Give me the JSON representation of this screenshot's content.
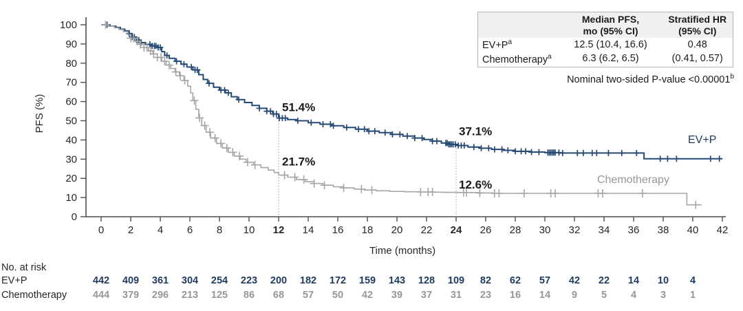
{
  "colors": {
    "evp_line": "#254a73",
    "evp_text": "#1f3a5f",
    "chemo_line": "#a6a6a6",
    "chemo_text": "#979797",
    "axis": "#4d4d4d",
    "tick_text": "#262626",
    "annotation_text": "#1a1a1a",
    "refline": "#999999",
    "table_header_bg": "#f0f0f0",
    "table_border": "#b3b3b3"
  },
  "chart_data": {
    "type": "line",
    "subtype": "kaplan-meier-step",
    "title": "",
    "xlabel": "Time (months)",
    "ylabel": "PFS (%)",
    "xlim": [
      0,
      42
    ],
    "ylim": [
      0,
      100
    ],
    "xticks": [
      0,
      2,
      4,
      6,
      8,
      10,
      12,
      14,
      16,
      18,
      20,
      22,
      24,
      26,
      28,
      30,
      32,
      34,
      36,
      38,
      40,
      42
    ],
    "bold_xticks": [
      12,
      24
    ],
    "yticks": [
      0,
      10,
      20,
      30,
      40,
      50,
      60,
      70,
      80,
      90,
      100
    ],
    "grid": false,
    "reference_lines_x": [
      12,
      24
    ],
    "series": [
      {
        "name": "EV+P",
        "end": 42,
        "steps": [
          [
            0,
            100
          ],
          [
            0.6,
            99.3
          ],
          [
            1.0,
            98.6
          ],
          [
            1.3,
            97.7
          ],
          [
            1.6,
            96.8
          ],
          [
            1.9,
            95.4
          ],
          [
            2.1,
            93.6
          ],
          [
            2.4,
            92.0
          ],
          [
            2.7,
            90.7
          ],
          [
            3.0,
            89.8
          ],
          [
            3.4,
            89.0
          ],
          [
            3.8,
            88.2
          ],
          [
            4.1,
            86.0
          ],
          [
            4.3,
            84.0
          ],
          [
            4.6,
            82.5
          ],
          [
            5.0,
            81.0
          ],
          [
            5.4,
            79.5
          ],
          [
            5.8,
            78.0
          ],
          [
            6.2,
            76.5
          ],
          [
            6.6,
            74.0
          ],
          [
            6.9,
            71.5
          ],
          [
            7.2,
            69.5
          ],
          [
            7.6,
            67.5
          ],
          [
            8.0,
            66.0
          ],
          [
            8.4,
            64.5
          ],
          [
            8.8,
            62.5
          ],
          [
            9.2,
            61.0
          ],
          [
            9.7,
            59.5
          ],
          [
            10.2,
            58.0
          ],
          [
            10.7,
            56.5
          ],
          [
            11.2,
            55.0
          ],
          [
            11.6,
            53.5
          ],
          [
            12.0,
            51.4
          ],
          [
            12.6,
            50.6
          ],
          [
            13.2,
            50.0
          ],
          [
            14.0,
            49.0
          ],
          [
            14.8,
            48.2
          ],
          [
            15.6,
            47.4
          ],
          [
            16.4,
            46.5
          ],
          [
            17.2,
            45.6
          ],
          [
            18.0,
            44.6
          ],
          [
            18.8,
            43.8
          ],
          [
            19.6,
            42.9
          ],
          [
            20.4,
            42.0
          ],
          [
            21.2,
            41.0
          ],
          [
            21.8,
            40.2
          ],
          [
            22.4,
            39.4
          ],
          [
            23.0,
            38.4
          ],
          [
            23.5,
            37.7
          ],
          [
            24.0,
            37.1
          ],
          [
            24.8,
            36.3
          ],
          [
            25.6,
            35.7
          ],
          [
            26.4,
            35.1
          ],
          [
            27.2,
            34.6
          ],
          [
            28.0,
            34.1
          ],
          [
            29.0,
            33.7
          ],
          [
            30.0,
            33.4
          ],
          [
            31.0,
            33.2
          ],
          [
            36.4,
            33.2
          ],
          [
            36.7,
            30.2
          ]
        ],
        "censor_marks": [
          0.4,
          1.9,
          2.1,
          2.25,
          2.4,
          2.55,
          2.7,
          3.3,
          3.45,
          3.6,
          3.7,
          3.85,
          4.0,
          4.45,
          5.1,
          5.6,
          6.1,
          6.35,
          6.5,
          7.3,
          8.1,
          8.35,
          8.6,
          9.3,
          10.7,
          11.2,
          11.45,
          11.65,
          11.85,
          12.05,
          12.25,
          12.45,
          13.3,
          14.2,
          15.0,
          15.5,
          15.7,
          16.6,
          17.4,
          17.8,
          18.1,
          18.5,
          19.2,
          19.7,
          20.2,
          20.7,
          21.2,
          21.7,
          22.4,
          22.7,
          23.3,
          23.4,
          23.5,
          23.6,
          23.7,
          23.8,
          23.95,
          24.15,
          24.35,
          24.55,
          25.2,
          25.7,
          26.2,
          26.6,
          27.1,
          27.5,
          28.0,
          28.4,
          28.7,
          29.1,
          29.6,
          30.2,
          30.3,
          30.4,
          30.5,
          30.6,
          30.7,
          30.95,
          31.2,
          32.2,
          32.6,
          33.2,
          33.5,
          34.3,
          35.2,
          36.2,
          37.8,
          38.3,
          38.9,
          41.2,
          41.8
        ]
      },
      {
        "name": "Chemotherapy",
        "end": 40.6,
        "steps": [
          [
            0,
            100
          ],
          [
            0.5,
            99.2
          ],
          [
            0.9,
            98.4
          ],
          [
            1.2,
            97.5
          ],
          [
            1.5,
            96.4
          ],
          [
            1.8,
            94.8
          ],
          [
            2.0,
            93.0
          ],
          [
            2.3,
            91.4
          ],
          [
            2.6,
            89.8
          ],
          [
            2.9,
            88.2
          ],
          [
            3.2,
            86.4
          ],
          [
            3.5,
            84.8
          ],
          [
            3.8,
            83.0
          ],
          [
            4.1,
            81.0
          ],
          [
            4.4,
            79.0
          ],
          [
            4.7,
            77.2
          ],
          [
            5.0,
            75.4
          ],
          [
            5.3,
            73.4
          ],
          [
            5.6,
            71.0
          ],
          [
            5.85,
            68.0
          ],
          [
            6.05,
            64.5
          ],
          [
            6.2,
            60.5
          ],
          [
            6.4,
            56.0
          ],
          [
            6.6,
            51.5
          ],
          [
            6.8,
            47.5
          ],
          [
            7.1,
            44.0
          ],
          [
            7.4,
            41.0
          ],
          [
            7.8,
            38.2
          ],
          [
            8.2,
            35.8
          ],
          [
            8.6,
            33.6
          ],
          [
            9.0,
            31.6
          ],
          [
            9.4,
            30.0
          ],
          [
            9.8,
            28.4
          ],
          [
            10.3,
            27.0
          ],
          [
            10.8,
            25.6
          ],
          [
            11.3,
            24.3
          ],
          [
            11.7,
            23.0
          ],
          [
            12.0,
            21.7
          ],
          [
            12.6,
            20.6
          ],
          [
            13.2,
            19.4
          ],
          [
            13.8,
            18.3
          ],
          [
            14.4,
            17.3
          ],
          [
            15.0,
            16.4
          ],
          [
            15.7,
            15.6
          ],
          [
            16.4,
            15.0
          ],
          [
            17.1,
            14.4
          ],
          [
            17.8,
            13.9
          ],
          [
            18.6,
            13.5
          ],
          [
            19.5,
            13.2
          ],
          [
            20.5,
            13.0
          ],
          [
            21.5,
            12.9
          ],
          [
            22.5,
            12.8
          ],
          [
            23.2,
            12.7
          ],
          [
            24.0,
            12.6
          ],
          [
            25.5,
            12.4
          ],
          [
            26.5,
            12.2
          ],
          [
            39.2,
            12.2
          ],
          [
            39.6,
            6.2
          ]
        ],
        "censor_marks": [
          0.3,
          2.0,
          2.2,
          2.45,
          2.65,
          2.9,
          3.1,
          3.35,
          3.55,
          3.8,
          4.05,
          4.3,
          4.6,
          5.05,
          5.35,
          5.65,
          6.3,
          6.65,
          7.0,
          7.35,
          7.7,
          8.1,
          8.5,
          8.9,
          9.35,
          9.9,
          10.4,
          12.4,
          13.1,
          13.7,
          14.4,
          15.1,
          16.4,
          17.6,
          18.3,
          21.6,
          22.1,
          22.4,
          24.5,
          24.7,
          25.6,
          26.6,
          26.9,
          28.6,
          30.4,
          30.7,
          33.6,
          33.9,
          36.6,
          40.2
        ]
      }
    ],
    "annotations": [
      {
        "text": "51.4%",
        "x": 12,
        "series": "EV+P"
      },
      {
        "text": "37.1%",
        "x": 24,
        "series": "EV+P"
      },
      {
        "text": "21.7%",
        "x": 12,
        "series": "Chemotherapy"
      },
      {
        "text": "12.6%",
        "x": 24,
        "series": "Chemotherapy"
      }
    ],
    "series_labels": [
      {
        "text": "EV+P",
        "series": "EV+P"
      },
      {
        "text": "Chemotherapy",
        "series": "Chemotherapy"
      }
    ]
  },
  "stats_table": {
    "headers": [
      "Median PFS,\nmo (95% CI)",
      "Stratified HR\n(95% CI)"
    ],
    "rows": [
      {
        "label": "EV+P",
        "footnote_marker": "a",
        "median_pfs": "12.5 (10.4, 16.6)",
        "hr": "0.48"
      },
      {
        "label": "Chemotherapy",
        "footnote_marker": "a",
        "median_pfs": "6.3 (6.2, 6.5)",
        "hr": "(0.41, 0.57)"
      }
    ],
    "footnote": "Nominal two-sided P-value <0.00001",
    "footnote_marker": "b"
  },
  "risk_table": {
    "title": "No. at risk",
    "months": [
      0,
      2,
      4,
      6,
      8,
      10,
      12,
      14,
      16,
      18,
      20,
      22,
      24,
      26,
      28,
      30,
      32,
      34,
      36,
      38,
      40
    ],
    "rows": [
      {
        "label": "EV+P",
        "values": [
          442,
          409,
          361,
          304,
          254,
          223,
          200,
          182,
          172,
          159,
          143,
          128,
          109,
          82,
          62,
          57,
          42,
          22,
          14,
          10,
          4
        ]
      },
      {
        "label": "Chemotherapy",
        "values": [
          444,
          379,
          296,
          213,
          125,
          86,
          68,
          57,
          50,
          42,
          39,
          37,
          31,
          23,
          16,
          14,
          9,
          5,
          4,
          3,
          1
        ]
      }
    ]
  }
}
